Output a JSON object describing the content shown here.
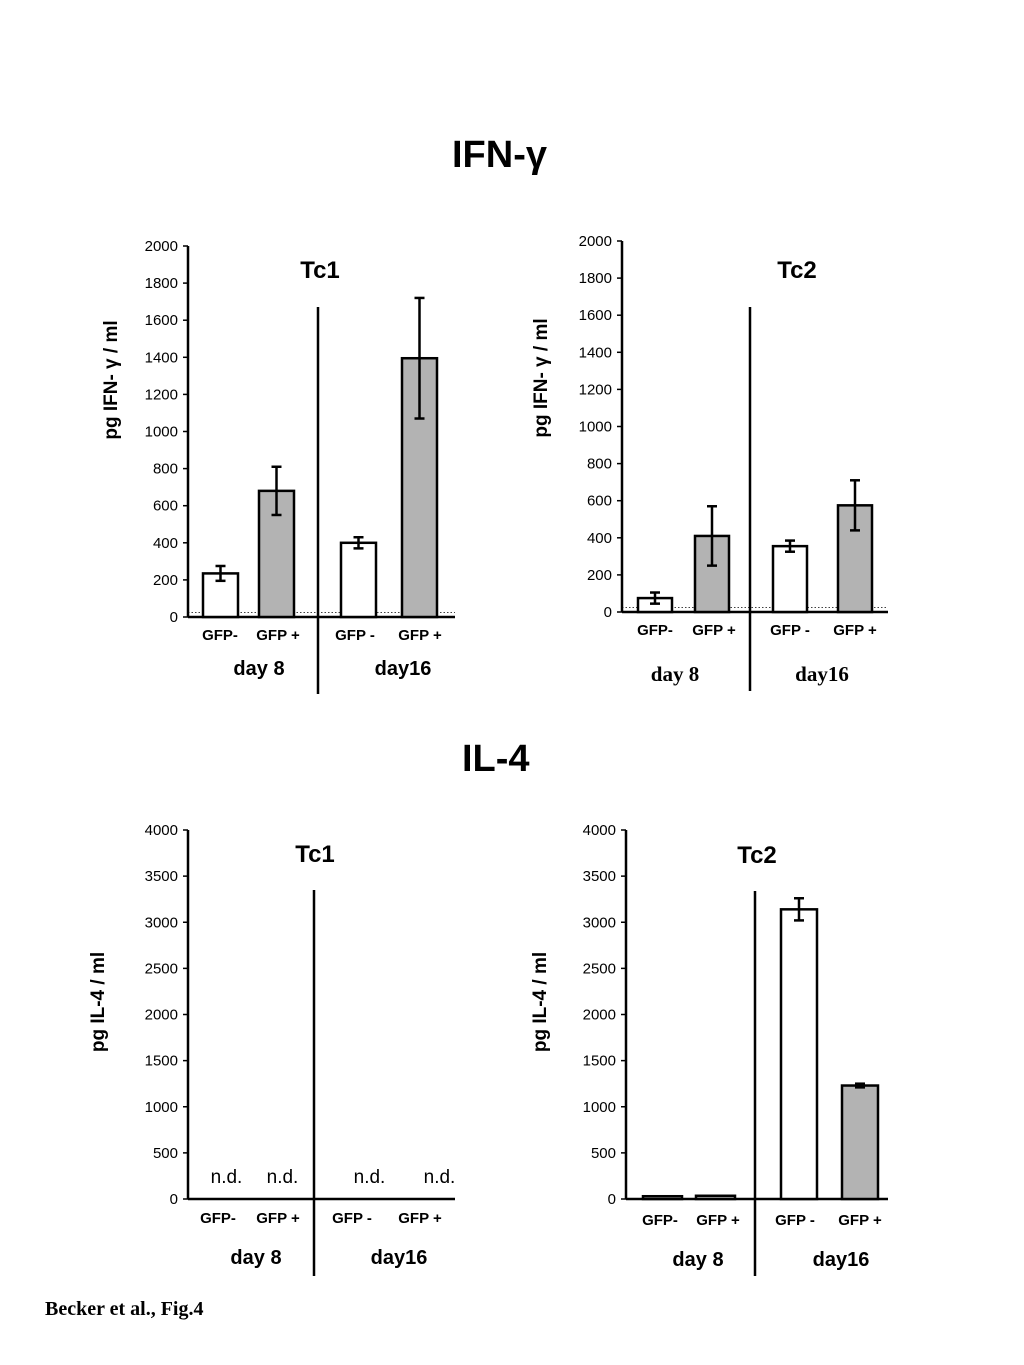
{
  "figure": {
    "section_ifn": "IFN-γ",
    "section_il4": "IL-4",
    "caption": "Becker et al., Fig.4"
  },
  "colors": {
    "gfp_neg": "#ffffff",
    "gfp_pos": "#b3b3b3",
    "stroke": "#000000"
  },
  "chart_data": [
    {
      "type": "bar",
      "title": "Tc1",
      "ylabel": "pg IFN- γ / ml",
      "ylim": [
        0,
        2000
      ],
      "yticks": [
        0,
        200,
        400,
        600,
        800,
        1000,
        1200,
        1400,
        1600,
        1800,
        2000
      ],
      "tick_labels": [
        "GFP-",
        "GFP +",
        "GFP -",
        "GFP +"
      ],
      "groups": [
        "day 8",
        "day16"
      ],
      "values": [
        235,
        680,
        400,
        1395
      ],
      "errors": [
        40,
        130,
        30,
        325
      ],
      "annotations": [
        "",
        "",
        "",
        ""
      ],
      "detection_limit": 25
    },
    {
      "type": "bar",
      "title": "Tc2",
      "ylabel": "pg IFN- γ / ml",
      "ylim": [
        0,
        2000
      ],
      "yticks": [
        0,
        200,
        400,
        600,
        800,
        1000,
        1200,
        1400,
        1600,
        1800,
        2000
      ],
      "tick_labels": [
        "GFP-",
        "GFP +",
        "GFP -",
        "GFP +"
      ],
      "groups": [
        "day 8",
        "day16"
      ],
      "values": [
        75,
        410,
        355,
        575
      ],
      "errors": [
        30,
        160,
        30,
        135
      ],
      "annotations": [
        "",
        "",
        "",
        ""
      ],
      "detection_limit": 25
    },
    {
      "type": "bar",
      "title": "Tc1",
      "ylabel": "pg IL-4 / ml",
      "ylim": [
        0,
        4000
      ],
      "yticks": [
        0,
        500,
        1000,
        1500,
        2000,
        2500,
        3000,
        3500,
        4000
      ],
      "tick_labels": [
        "GFP-",
        "GFP +",
        "GFP -",
        "GFP +"
      ],
      "groups": [
        "day 8",
        "day16"
      ],
      "values": [
        null,
        null,
        null,
        null
      ],
      "errors": [
        null,
        null,
        null,
        null
      ],
      "annotations": [
        "n.d.",
        "n.d.",
        "n.d.",
        "n.d."
      ]
    },
    {
      "type": "bar",
      "title": "Tc2",
      "ylabel": "pg IL-4 / ml",
      "ylim": [
        0,
        4000
      ],
      "yticks": [
        0,
        500,
        1000,
        1500,
        2000,
        2500,
        3000,
        3500,
        4000
      ],
      "tick_labels": [
        "GFP-",
        "GFP +",
        "GFP -",
        "GFP +"
      ],
      "groups": [
        "day 8",
        "day16"
      ],
      "values": [
        30,
        35,
        3140,
        1230
      ],
      "errors": [
        0,
        0,
        120,
        20
      ],
      "annotations": [
        "",
        "",
        "",
        ""
      ]
    }
  ]
}
